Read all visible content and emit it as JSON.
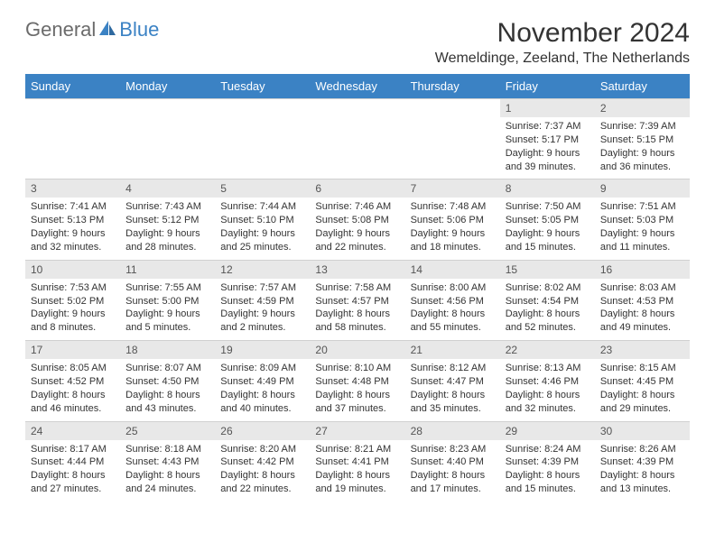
{
  "brand": {
    "part1": "General",
    "part2": "Blue"
  },
  "title": "November 2024",
  "subtitle": "Wemeldinge, Zeeland, The Netherlands",
  "colors": {
    "header_bg": "#3b82c4",
    "header_text": "#ffffff",
    "daynum_bg": "#e8e8e8",
    "text": "#333333",
    "logo_gray": "#6b6b6b",
    "logo_blue": "#3b82c4",
    "background": "#ffffff"
  },
  "day_headers": [
    "Sunday",
    "Monday",
    "Tuesday",
    "Wednesday",
    "Thursday",
    "Friday",
    "Saturday"
  ],
  "weeks": [
    [
      null,
      null,
      null,
      null,
      null,
      {
        "n": "1",
        "sr": "7:37 AM",
        "ss": "5:17 PM",
        "dl": "9 hours and 39 minutes."
      },
      {
        "n": "2",
        "sr": "7:39 AM",
        "ss": "5:15 PM",
        "dl": "9 hours and 36 minutes."
      }
    ],
    [
      {
        "n": "3",
        "sr": "7:41 AM",
        "ss": "5:13 PM",
        "dl": "9 hours and 32 minutes."
      },
      {
        "n": "4",
        "sr": "7:43 AM",
        "ss": "5:12 PM",
        "dl": "9 hours and 28 minutes."
      },
      {
        "n": "5",
        "sr": "7:44 AM",
        "ss": "5:10 PM",
        "dl": "9 hours and 25 minutes."
      },
      {
        "n": "6",
        "sr": "7:46 AM",
        "ss": "5:08 PM",
        "dl": "9 hours and 22 minutes."
      },
      {
        "n": "7",
        "sr": "7:48 AM",
        "ss": "5:06 PM",
        "dl": "9 hours and 18 minutes."
      },
      {
        "n": "8",
        "sr": "7:50 AM",
        "ss": "5:05 PM",
        "dl": "9 hours and 15 minutes."
      },
      {
        "n": "9",
        "sr": "7:51 AM",
        "ss": "5:03 PM",
        "dl": "9 hours and 11 minutes."
      }
    ],
    [
      {
        "n": "10",
        "sr": "7:53 AM",
        "ss": "5:02 PM",
        "dl": "9 hours and 8 minutes."
      },
      {
        "n": "11",
        "sr": "7:55 AM",
        "ss": "5:00 PM",
        "dl": "9 hours and 5 minutes."
      },
      {
        "n": "12",
        "sr": "7:57 AM",
        "ss": "4:59 PM",
        "dl": "9 hours and 2 minutes."
      },
      {
        "n": "13",
        "sr": "7:58 AM",
        "ss": "4:57 PM",
        "dl": "8 hours and 58 minutes."
      },
      {
        "n": "14",
        "sr": "8:00 AM",
        "ss": "4:56 PM",
        "dl": "8 hours and 55 minutes."
      },
      {
        "n": "15",
        "sr": "8:02 AM",
        "ss": "4:54 PM",
        "dl": "8 hours and 52 minutes."
      },
      {
        "n": "16",
        "sr": "8:03 AM",
        "ss": "4:53 PM",
        "dl": "8 hours and 49 minutes."
      }
    ],
    [
      {
        "n": "17",
        "sr": "8:05 AM",
        "ss": "4:52 PM",
        "dl": "8 hours and 46 minutes."
      },
      {
        "n": "18",
        "sr": "8:07 AM",
        "ss": "4:50 PM",
        "dl": "8 hours and 43 minutes."
      },
      {
        "n": "19",
        "sr": "8:09 AM",
        "ss": "4:49 PM",
        "dl": "8 hours and 40 minutes."
      },
      {
        "n": "20",
        "sr": "8:10 AM",
        "ss": "4:48 PM",
        "dl": "8 hours and 37 minutes."
      },
      {
        "n": "21",
        "sr": "8:12 AM",
        "ss": "4:47 PM",
        "dl": "8 hours and 35 minutes."
      },
      {
        "n": "22",
        "sr": "8:13 AM",
        "ss": "4:46 PM",
        "dl": "8 hours and 32 minutes."
      },
      {
        "n": "23",
        "sr": "8:15 AM",
        "ss": "4:45 PM",
        "dl": "8 hours and 29 minutes."
      }
    ],
    [
      {
        "n": "24",
        "sr": "8:17 AM",
        "ss": "4:44 PM",
        "dl": "8 hours and 27 minutes."
      },
      {
        "n": "25",
        "sr": "8:18 AM",
        "ss": "4:43 PM",
        "dl": "8 hours and 24 minutes."
      },
      {
        "n": "26",
        "sr": "8:20 AM",
        "ss": "4:42 PM",
        "dl": "8 hours and 22 minutes."
      },
      {
        "n": "27",
        "sr": "8:21 AM",
        "ss": "4:41 PM",
        "dl": "8 hours and 19 minutes."
      },
      {
        "n": "28",
        "sr": "8:23 AM",
        "ss": "4:40 PM",
        "dl": "8 hours and 17 minutes."
      },
      {
        "n": "29",
        "sr": "8:24 AM",
        "ss": "4:39 PM",
        "dl": "8 hours and 15 minutes."
      },
      {
        "n": "30",
        "sr": "8:26 AM",
        "ss": "4:39 PM",
        "dl": "8 hours and 13 minutes."
      }
    ]
  ],
  "labels": {
    "sunrise": "Sunrise:",
    "sunset": "Sunset:",
    "daylight": "Daylight:"
  }
}
